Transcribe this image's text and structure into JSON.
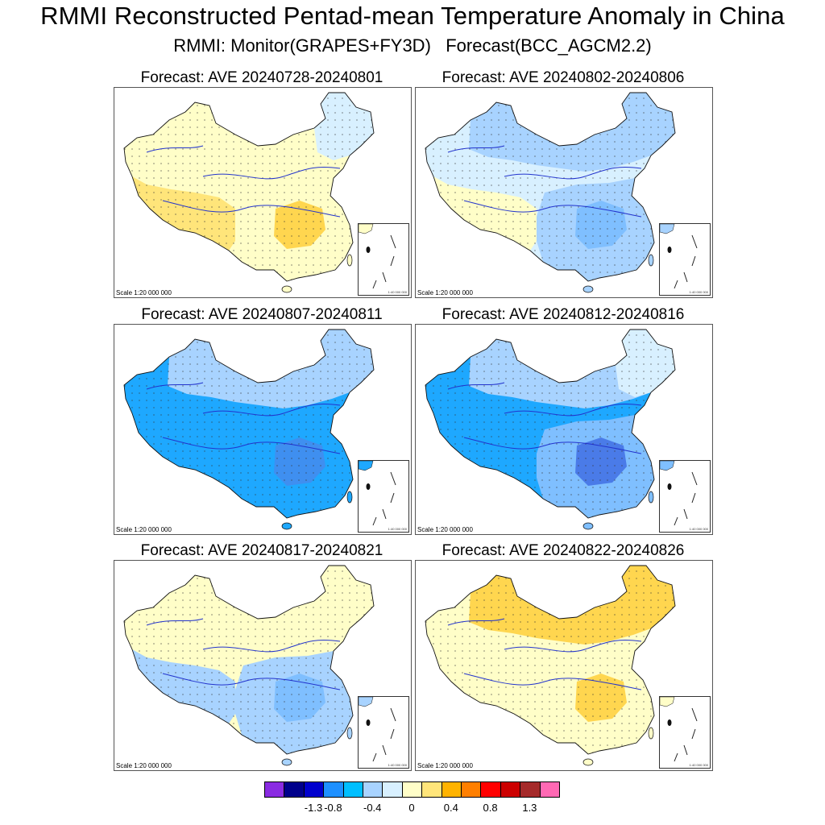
{
  "title": "RMMI Reconstructed Pentad-mean Temperature Anomaly in China",
  "subtitle": "RMMI: Monitor(GRAPES+FY3D)   Forecast(BCC_AGCM2.2)",
  "scale_text": "Scale 1:20 000 000",
  "inset_scale_text": "1:40 000 000",
  "chart_data": {
    "type": "heatmap",
    "panels": [
      {
        "title": "Forecast: AVE 20240728-20240801",
        "west": "#fffec8",
        "north": "#fffec8",
        "northeast": "#d8f0ff",
        "south": "#fffec8",
        "tibet": "#ffe57a",
        "patch": "#ffd64f"
      },
      {
        "title": "Forecast: AVE 20240802-20240806",
        "west": "#d8f0ff",
        "north": "#a8d3ff",
        "northeast": "#a8d3ff",
        "south": "#a8d3ff",
        "tibet": "#fffec8",
        "patch": "#7fbfff"
      },
      {
        "title": "Forecast: AVE 20240807-20240811",
        "west": "#1ea8ff",
        "north": "#a8d3ff",
        "northeast": "#a8d3ff",
        "south": "#1ea8ff",
        "tibet": "#1ea8ff",
        "patch": "#3f8ff0"
      },
      {
        "title": "Forecast: AVE 20240812-20240816",
        "west": "#1ea8ff",
        "north": "#a8d3ff",
        "northeast": "#d8f0ff",
        "south": "#7fbfff",
        "tibet": "#1ea8ff",
        "patch": "#4a7be8"
      },
      {
        "title": "Forecast: AVE 20240817-20240821",
        "west": "#fffec8",
        "north": "#fffec8",
        "northeast": "#fffec8",
        "south": "#a8d3ff",
        "tibet": "#a8d3ff",
        "patch": "#7fbfff"
      },
      {
        "title": "Forecast: AVE 20240822-20240826",
        "west": "#fffec8",
        "north": "#ffd64f",
        "northeast": "#ffd64f",
        "south": "#fffec8",
        "tibet": "#fffec8",
        "patch": "#ffd64f"
      }
    ],
    "colorbar": {
      "colors": [
        "#8a2be2",
        "#00008b",
        "#0000cd",
        "#1e90ff",
        "#00bfff",
        "#a8d3ff",
        "#d8f0ff",
        "#fffec8",
        "#ffe57a",
        "#ffb300",
        "#ff7f00",
        "#ff0000",
        "#cc0000",
        "#a52a2a",
        "#ff69b4"
      ],
      "labels": [
        "-1.3",
        "-0.8",
        "-0.4",
        "0",
        "0.4",
        "0.8",
        "1.3"
      ]
    }
  }
}
